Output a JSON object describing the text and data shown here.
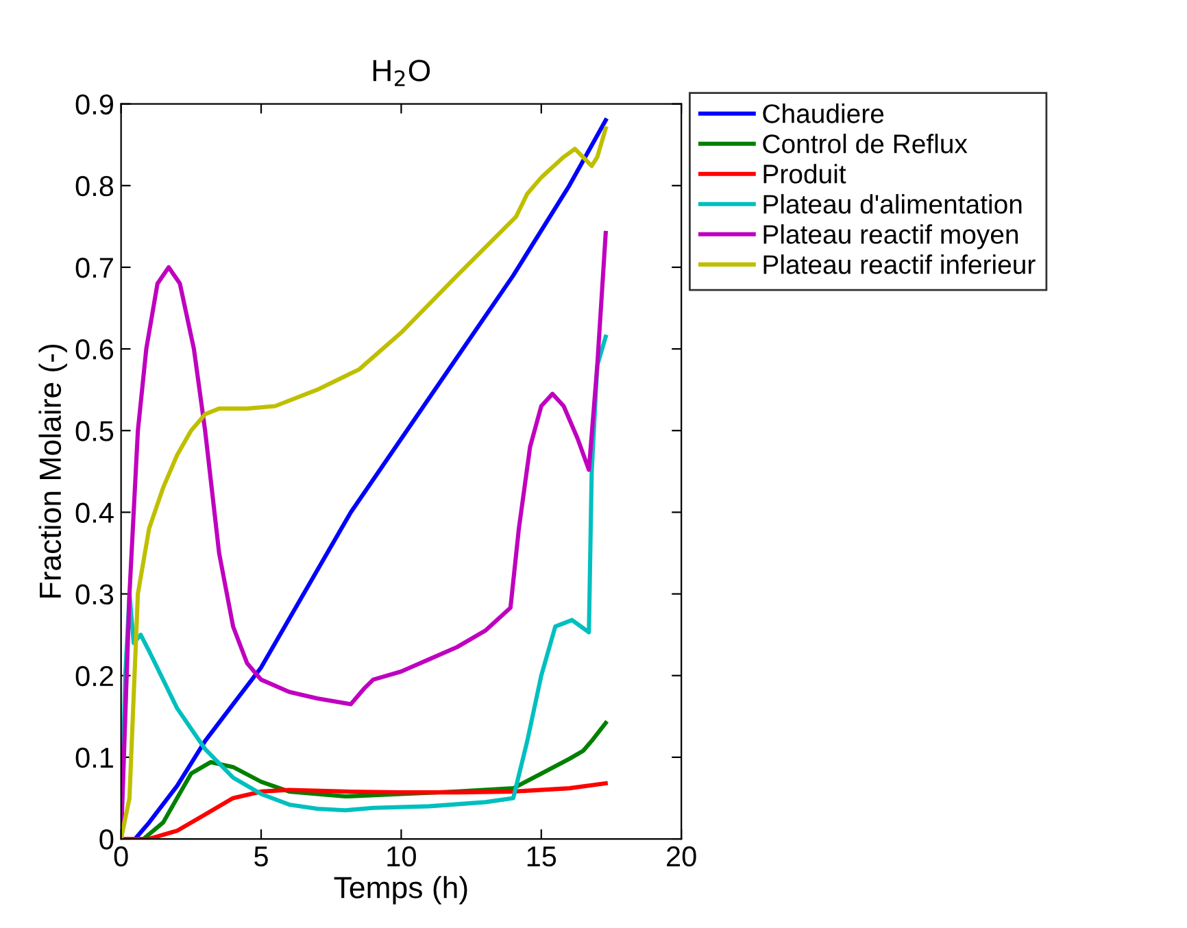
{
  "chart_data": {
    "type": "line",
    "title": "H$_{2}$O",
    "xlabel": "Temps (h)",
    "ylabel": "Fraction Molaire (-)",
    "xlim": [
      0,
      20
    ],
    "xticks": [
      0,
      5,
      10,
      15,
      20
    ],
    "ylim": [
      0,
      0.9
    ],
    "yticks": [
      0,
      0.1,
      0.2,
      0.3,
      0.4,
      0.5,
      0.6,
      0.7,
      0.8,
      0.9
    ],
    "grid": false,
    "legend": "right",
    "marker": "none",
    "line_style": "solid",
    "series": [
      {
        "name": "Chaudiere",
        "color": "#0000ff",
        "x": [
          0,
          0.5,
          1,
          2,
          3,
          5,
          8.2,
          10,
          14,
          16,
          17.3
        ],
        "values": [
          0,
          0,
          0.02,
          0.065,
          0.12,
          0.21,
          0.4,
          0.49,
          0.69,
          0.8,
          0.88
        ]
      },
      {
        "name": "Control de Reflux",
        "color": "#008000",
        "x": [
          0,
          0.8,
          1.5,
          2.5,
          3.2,
          4,
          5,
          6,
          8,
          10,
          12,
          14,
          15,
          16,
          16.5,
          16.8,
          17.3
        ],
        "values": [
          0,
          0,
          0.02,
          0.08,
          0.094,
          0.088,
          0.07,
          0.058,
          0.052,
          0.055,
          0.058,
          0.062,
          0.08,
          0.098,
          0.108,
          0.12,
          0.142
        ]
      },
      {
        "name": "Produit",
        "color": "#ff0000",
        "x": [
          0,
          1,
          2,
          3,
          4,
          5,
          6,
          8,
          10,
          12,
          14,
          16,
          17.3
        ],
        "values": [
          0,
          0,
          0.01,
          0.03,
          0.05,
          0.058,
          0.06,
          0.058,
          0.057,
          0.057,
          0.058,
          0.062,
          0.068
        ]
      },
      {
        "name": "Plateau d'alimentation",
        "color": "#00bfbf",
        "x": [
          0,
          0.15,
          0.3,
          0.45,
          0.7,
          1,
          2,
          3,
          4,
          5,
          6,
          7,
          8,
          9,
          11,
          13,
          14,
          14.5,
          15,
          15.5,
          16.1,
          16.7,
          16.8,
          17,
          17.3
        ],
        "values": [
          0,
          0.2,
          0.3,
          0.24,
          0.25,
          0.23,
          0.16,
          0.11,
          0.075,
          0.055,
          0.042,
          0.037,
          0.035,
          0.038,
          0.04,
          0.045,
          0.05,
          0.12,
          0.2,
          0.26,
          0.268,
          0.253,
          0.45,
          0.58,
          0.615
        ]
      },
      {
        "name": "Plateau reactif moyen",
        "color": "#bf00bf",
        "x": [
          0,
          0.3,
          0.6,
          0.9,
          1.3,
          1.7,
          2.1,
          2.6,
          3,
          3.5,
          4,
          4.5,
          5,
          6,
          7,
          8.2,
          8.7,
          9,
          10,
          11,
          12,
          13,
          13.9,
          14.2,
          14.6,
          15,
          15.4,
          15.8,
          16.3,
          16.7,
          17,
          17.3
        ],
        "values": [
          0,
          0.3,
          0.5,
          0.6,
          0.68,
          0.7,
          0.68,
          0.6,
          0.5,
          0.35,
          0.26,
          0.215,
          0.195,
          0.18,
          0.172,
          0.165,
          0.185,
          0.195,
          0.205,
          0.22,
          0.235,
          0.255,
          0.283,
          0.38,
          0.48,
          0.53,
          0.545,
          0.53,
          0.49,
          0.452,
          0.58,
          0.742
        ]
      },
      {
        "name": "Plateau reactif inferieur",
        "color": "#bfbf00",
        "x": [
          0,
          0.3,
          0.6,
          1,
          1.5,
          2,
          2.5,
          3,
          3.5,
          4.5,
          5.5,
          7,
          8.5,
          10,
          12,
          14.1,
          14.5,
          15,
          15.8,
          16.2,
          16.8,
          17,
          17.3
        ],
        "values": [
          0,
          0.05,
          0.3,
          0.38,
          0.43,
          0.47,
          0.5,
          0.52,
          0.527,
          0.527,
          0.53,
          0.55,
          0.575,
          0.62,
          0.69,
          0.762,
          0.79,
          0.81,
          0.835,
          0.845,
          0.824,
          0.835,
          0.87
        ]
      }
    ]
  }
}
